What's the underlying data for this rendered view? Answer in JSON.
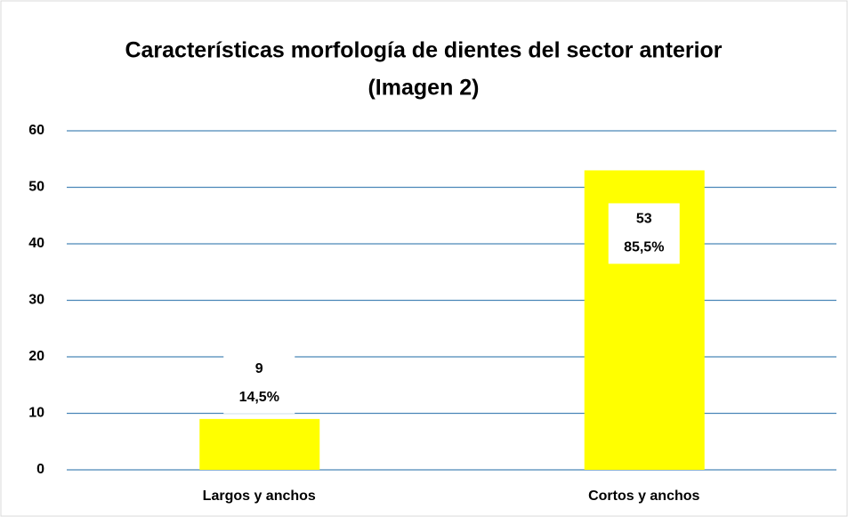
{
  "chart_data": {
    "type": "bar",
    "title": [
      "Características morfología de dientes del sector anterior",
      "(Imagen 2)"
    ],
    "categories": [
      "Largos y anchos",
      "Cortos y anchos"
    ],
    "values": [
      9,
      53
    ],
    "percent_labels": [
      "14,5%",
      "85,5%"
    ],
    "color": "#ffff00",
    "ylim": [
      0,
      60
    ],
    "yticks": [
      0,
      10,
      20,
      30,
      40,
      50,
      60
    ],
    "grid": true
  }
}
